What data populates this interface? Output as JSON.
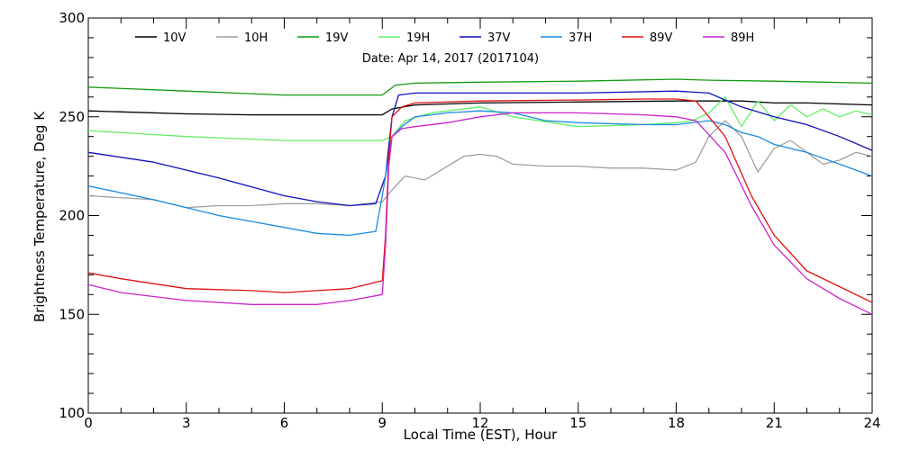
{
  "chart_data": {
    "type": "line",
    "title": "",
    "annotation": "Date: Apr 14, 2017 (2017104)",
    "xlabel": "Local Time (EST), Hour",
    "ylabel": "Brightness Temperature, Deg K",
    "xlim": [
      0,
      24
    ],
    "ylim": [
      100,
      300
    ],
    "xticks": [
      0,
      3,
      6,
      9,
      12,
      15,
      18,
      21,
      24
    ],
    "yticks": [
      100,
      150,
      200,
      250,
      300
    ],
    "grid": false,
    "legend_position": "top",
    "series": [
      {
        "name": "10V",
        "color": "#000000",
        "x": [
          0,
          1,
          3,
          5,
          7,
          9,
          9.3,
          10,
          12,
          15,
          18,
          19,
          20,
          21,
          22,
          23,
          24
        ],
        "y": [
          253,
          252.5,
          251.5,
          251,
          251,
          251,
          254,
          256,
          257,
          257.5,
          258,
          258,
          258,
          257,
          257,
          256.5,
          256
        ]
      },
      {
        "name": "10H",
        "color": "#a0a0a0",
        "x": [
          0,
          2,
          3,
          4,
          5,
          6,
          7,
          8,
          9,
          9.3,
          9.7,
          10.3,
          11,
          11.5,
          12,
          12.5,
          13,
          14,
          15,
          16,
          17,
          18,
          18.6,
          19,
          19.5,
          20,
          20.5,
          21,
          21.5,
          22,
          22.5,
          23,
          23.5,
          24
        ],
        "y": [
          210,
          208,
          204,
          205,
          205,
          206,
          206,
          205,
          207,
          213,
          220,
          218,
          225,
          230,
          231,
          230,
          226,
          225,
          225,
          224,
          224,
          223,
          227,
          240,
          248,
          240,
          222,
          234,
          238,
          232,
          226,
          228,
          232,
          230
        ]
      },
      {
        "name": "19V",
        "color": "#119911",
        "x": [
          0,
          3,
          6,
          9,
          9.4,
          10,
          12,
          15,
          18,
          19,
          21,
          24
        ],
        "y": [
          265,
          263,
          261,
          261,
          266,
          267,
          267.5,
          268,
          269,
          268.5,
          268,
          267
        ]
      },
      {
        "name": "19H",
        "color": "#66ee66",
        "x": [
          0,
          3,
          6,
          9,
          9.3,
          9.7,
          10.5,
          12,
          13,
          15,
          17,
          18,
          18.5,
          19,
          19.5,
          20,
          20.5,
          21,
          21.5,
          22,
          22.5,
          23,
          23.5,
          24
        ],
        "y": [
          243,
          240,
          238,
          238,
          240,
          248,
          252,
          255,
          250,
          245,
          246,
          247,
          248,
          252,
          260,
          245,
          258,
          248,
          256,
          250,
          254,
          250,
          253,
          251
        ]
      },
      {
        "name": "37V",
        "color": "#1010bb",
        "x": [
          0,
          2,
          4,
          6,
          7,
          8,
          8.8,
          9.1,
          9.3,
          9.5,
          10,
          12,
          15,
          18,
          19,
          20,
          21,
          22,
          23,
          24
        ],
        "y": [
          232,
          227,
          219,
          210,
          207,
          205,
          206,
          220,
          250,
          261,
          262,
          262,
          262,
          263,
          262,
          255,
          250,
          246,
          240,
          233
        ]
      },
      {
        "name": "37H",
        "color": "#1a8ae0",
        "x": [
          0,
          2,
          4,
          6,
          7,
          8,
          8.8,
          9,
          9.3,
          9.6,
          10,
          11,
          12,
          13,
          14,
          15,
          17,
          18,
          19,
          19.5,
          20,
          20.5,
          21,
          22,
          23,
          24
        ],
        "y": [
          215,
          208,
          200,
          194,
          191,
          190,
          192,
          210,
          240,
          245,
          250,
          252,
          253,
          252,
          248,
          247,
          246,
          246,
          248,
          246,
          242,
          240,
          236,
          232,
          226,
          220
        ]
      },
      {
        "name": "89V",
        "color": "#e01010",
        "x": [
          0,
          1,
          3,
          5,
          6,
          7,
          8,
          9,
          9.1,
          9.2,
          9.3,
          9.6,
          10,
          11,
          12,
          15,
          17,
          18,
          18.6,
          19.5,
          20.3,
          21,
          22,
          23,
          24
        ],
        "y": [
          171,
          168,
          163,
          162,
          161,
          162,
          163,
          167,
          190,
          230,
          250,
          255,
          257,
          257.5,
          258,
          258.5,
          259,
          259,
          258,
          240,
          210,
          190,
          172,
          164,
          156
        ]
      },
      {
        "name": "89H",
        "color": "#cc22cc",
        "x": [
          0,
          1,
          3,
          5,
          6,
          7,
          8,
          9,
          9.1,
          9.2,
          9.3,
          9.6,
          10,
          11,
          12,
          13,
          15,
          17,
          18,
          18.6,
          19.5,
          20.3,
          21,
          22,
          23,
          24
        ],
        "y": [
          165,
          161,
          157,
          155,
          155,
          155,
          157,
          160,
          185,
          225,
          240,
          244,
          245,
          247,
          250,
          252,
          252,
          251,
          250,
          248,
          232,
          205,
          185,
          168,
          158,
          150
        ]
      }
    ]
  }
}
